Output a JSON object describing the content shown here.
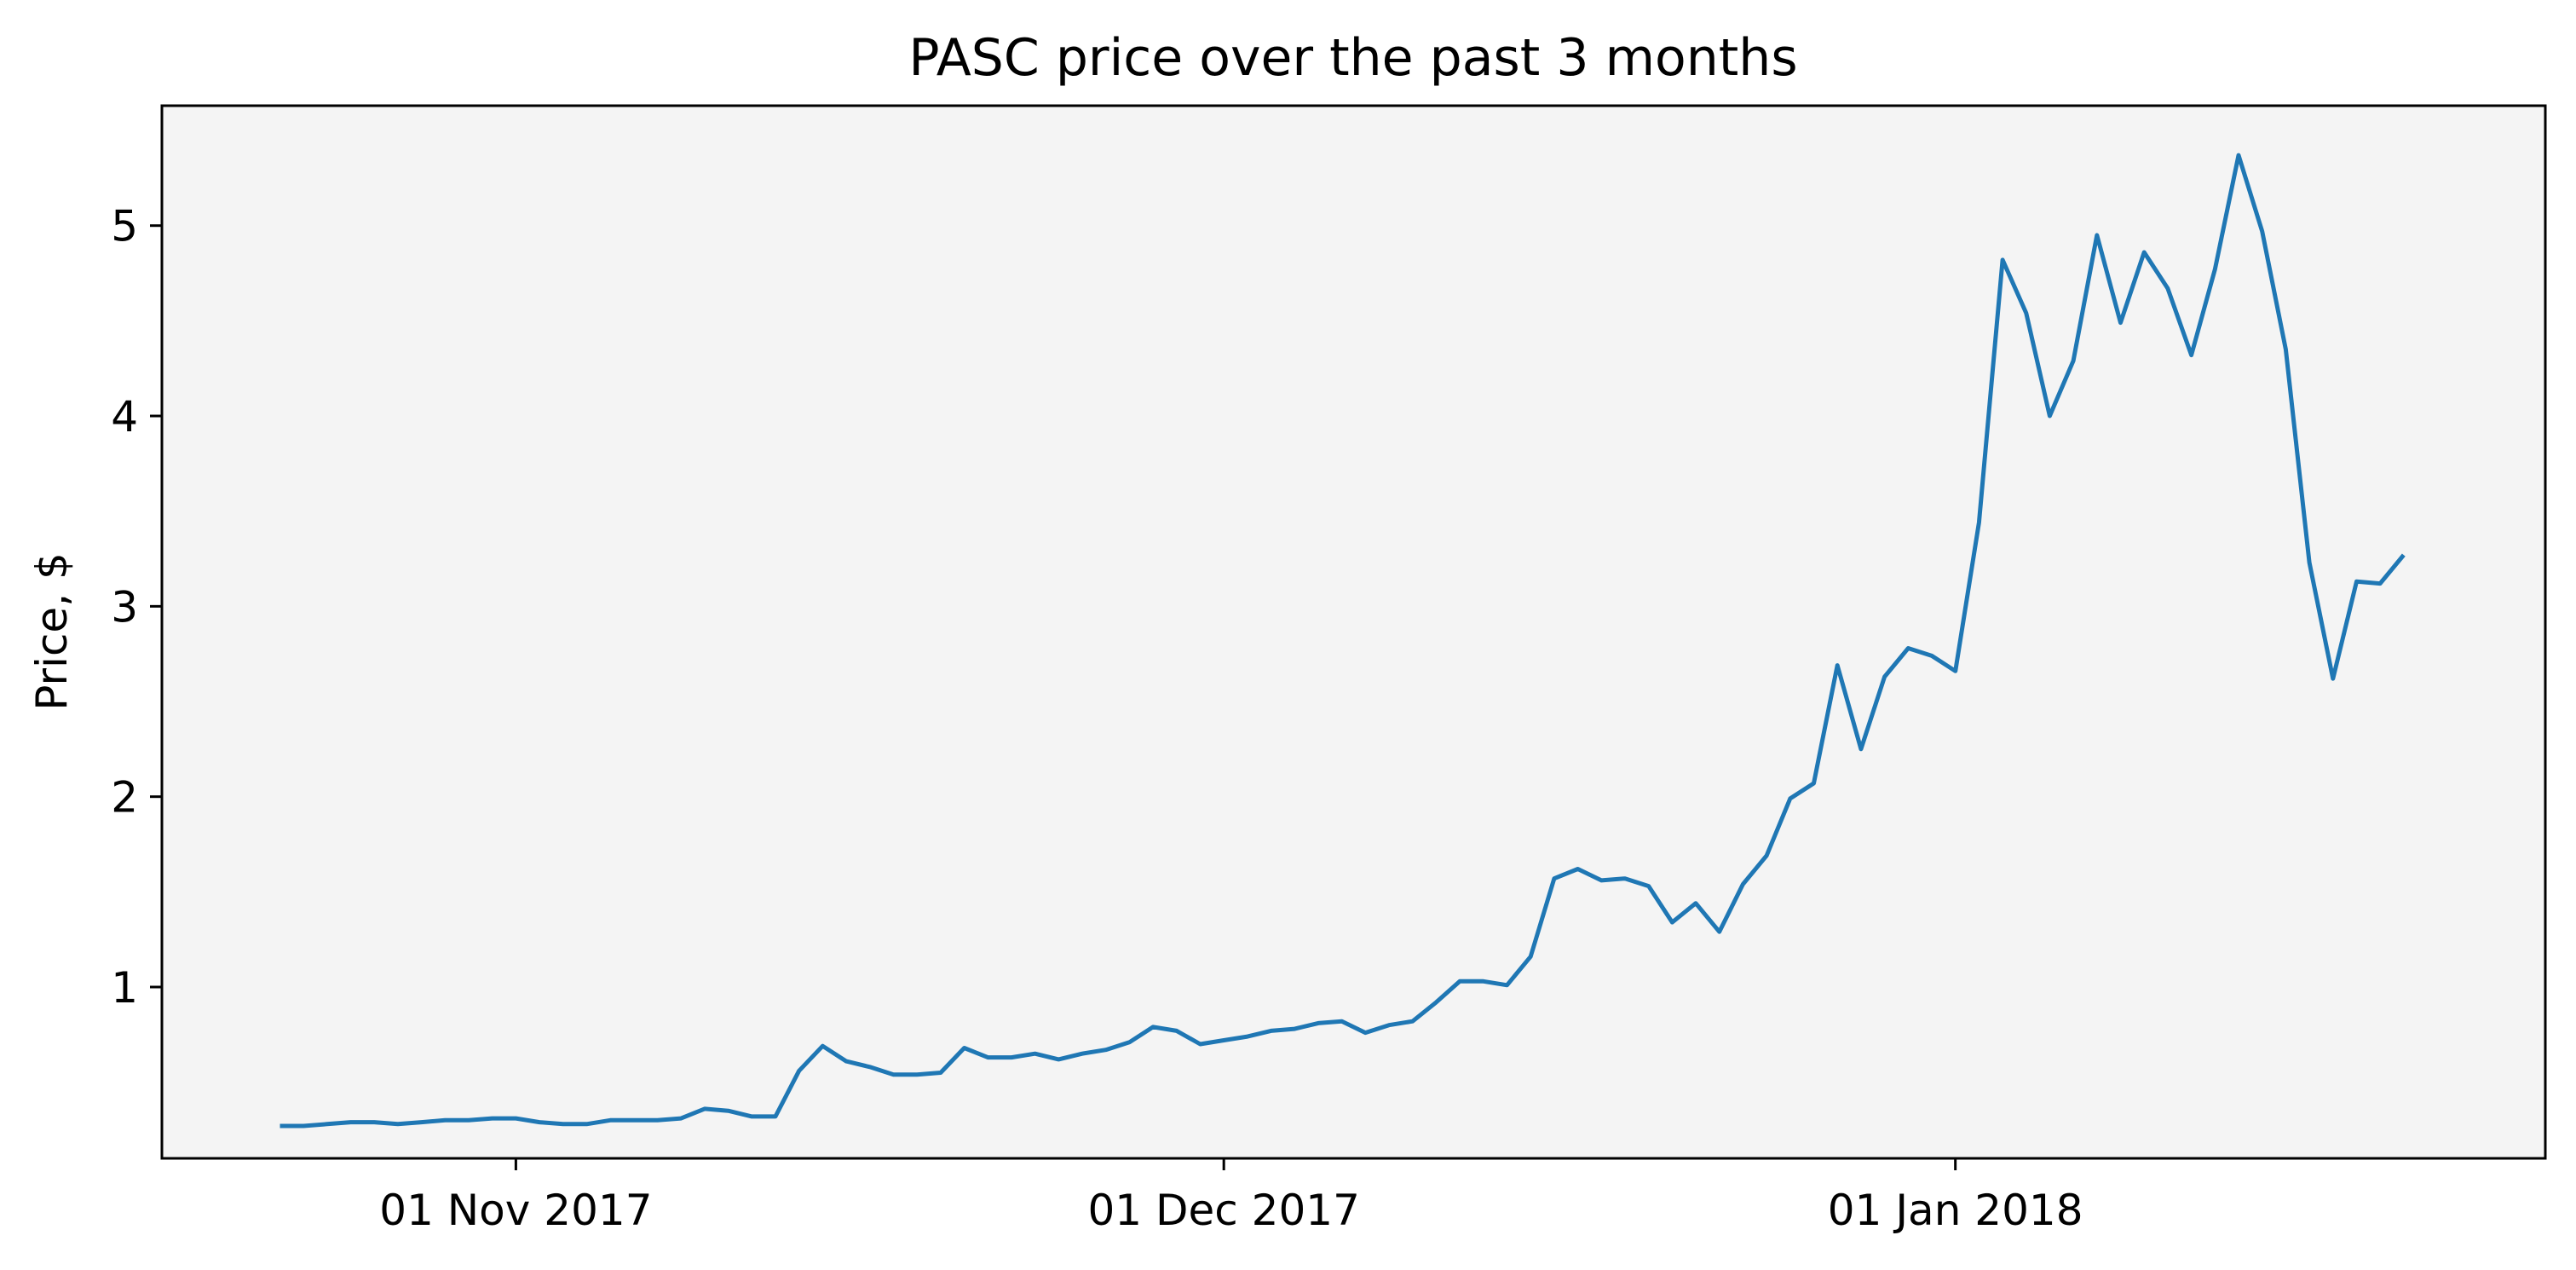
{
  "chart_data": {
    "type": "line",
    "title": "PASC price over the past 3 months",
    "xlabel": "",
    "ylabel": "Price, $",
    "x_ticks": [
      {
        "date": "2017-11-01",
        "label": "01 Nov 2017"
      },
      {
        "date": "2017-12-01",
        "label": "01 Dec 2017"
      },
      {
        "date": "2018-01-01",
        "label": "01 Jan 2018"
      }
    ],
    "y_ticks": [
      1,
      2,
      3,
      4,
      5
    ],
    "xlim": [
      "2017-10-17",
      "2018-01-26"
    ],
    "ylim": [
      0.1,
      5.63
    ],
    "grid": false,
    "legend": "none",
    "background_color": "#f4f4f4",
    "series": [
      {
        "color": "#1f77b4",
        "points": [
          [
            "2017-10-22",
            0.27
          ],
          [
            "2017-10-23",
            0.27
          ],
          [
            "2017-10-24",
            0.28
          ],
          [
            "2017-10-25",
            0.29
          ],
          [
            "2017-10-26",
            0.29
          ],
          [
            "2017-10-27",
            0.28
          ],
          [
            "2017-10-28",
            0.29
          ],
          [
            "2017-10-29",
            0.3
          ],
          [
            "2017-10-30",
            0.3
          ],
          [
            "2017-10-31",
            0.31
          ],
          [
            "2017-11-01",
            0.31
          ],
          [
            "2017-11-02",
            0.29
          ],
          [
            "2017-11-03",
            0.28
          ],
          [
            "2017-11-04",
            0.28
          ],
          [
            "2017-11-05",
            0.3
          ],
          [
            "2017-11-06",
            0.3
          ],
          [
            "2017-11-07",
            0.3
          ],
          [
            "2017-11-08",
            0.31
          ],
          [
            "2017-11-09",
            0.36
          ],
          [
            "2017-11-10",
            0.35
          ],
          [
            "2017-11-11",
            0.32
          ],
          [
            "2017-11-12",
            0.32
          ],
          [
            "2017-11-13",
            0.56
          ],
          [
            "2017-11-14",
            0.69
          ],
          [
            "2017-11-15",
            0.61
          ],
          [
            "2017-11-16",
            0.58
          ],
          [
            "2017-11-17",
            0.54
          ],
          [
            "2017-11-18",
            0.54
          ],
          [
            "2017-11-19",
            0.55
          ],
          [
            "2017-11-20",
            0.68
          ],
          [
            "2017-11-21",
            0.63
          ],
          [
            "2017-11-22",
            0.63
          ],
          [
            "2017-11-23",
            0.65
          ],
          [
            "2017-11-24",
            0.62
          ],
          [
            "2017-11-25",
            0.65
          ],
          [
            "2017-11-26",
            0.67
          ],
          [
            "2017-11-27",
            0.71
          ],
          [
            "2017-11-28",
            0.79
          ],
          [
            "2017-11-29",
            0.77
          ],
          [
            "2017-11-30",
            0.7
          ],
          [
            "2017-12-01",
            0.72
          ],
          [
            "2017-12-02",
            0.74
          ],
          [
            "2017-12-03",
            0.77
          ],
          [
            "2017-12-04",
            0.78
          ],
          [
            "2017-12-05",
            0.81
          ],
          [
            "2017-12-06",
            0.82
          ],
          [
            "2017-12-07",
            0.76
          ],
          [
            "2017-12-08",
            0.8
          ],
          [
            "2017-12-09",
            0.82
          ],
          [
            "2017-12-10",
            0.92
          ],
          [
            "2017-12-11",
            1.03
          ],
          [
            "2017-12-12",
            1.03
          ],
          [
            "2017-12-13",
            1.01
          ],
          [
            "2017-12-14",
            1.16
          ],
          [
            "2017-12-15",
            1.57
          ],
          [
            "2017-12-16",
            1.62
          ],
          [
            "2017-12-17",
            1.56
          ],
          [
            "2017-12-18",
            1.57
          ],
          [
            "2017-12-19",
            1.53
          ],
          [
            "2017-12-20",
            1.34
          ],
          [
            "2017-12-21",
            1.44
          ],
          [
            "2017-12-22",
            1.29
          ],
          [
            "2017-12-23",
            1.54
          ],
          [
            "2017-12-24",
            1.69
          ],
          [
            "2017-12-25",
            1.99
          ],
          [
            "2017-12-26",
            2.07
          ],
          [
            "2017-12-27",
            2.69
          ],
          [
            "2017-12-28",
            2.25
          ],
          [
            "2017-12-29",
            2.63
          ],
          [
            "2017-12-30",
            2.78
          ],
          [
            "2017-12-31",
            2.74
          ],
          [
            "2018-01-01",
            2.66
          ],
          [
            "2018-01-02",
            3.44
          ],
          [
            "2018-01-03",
            4.82
          ],
          [
            "2018-01-04",
            4.54
          ],
          [
            "2018-01-05",
            4.0
          ],
          [
            "2018-01-06",
            4.29
          ],
          [
            "2018-01-07",
            4.95
          ],
          [
            "2018-01-08",
            4.49
          ],
          [
            "2018-01-09",
            4.86
          ],
          [
            "2018-01-10",
            4.67
          ],
          [
            "2018-01-11",
            4.32
          ],
          [
            "2018-01-12",
            4.77
          ],
          [
            "2018-01-13",
            5.37
          ],
          [
            "2018-01-14",
            4.97
          ],
          [
            "2018-01-15",
            4.35
          ],
          [
            "2018-01-16",
            3.23
          ],
          [
            "2018-01-17",
            2.62
          ],
          [
            "2018-01-18",
            3.13
          ],
          [
            "2018-01-19",
            3.12
          ],
          [
            "2018-01-20",
            3.27
          ]
        ]
      }
    ]
  }
}
